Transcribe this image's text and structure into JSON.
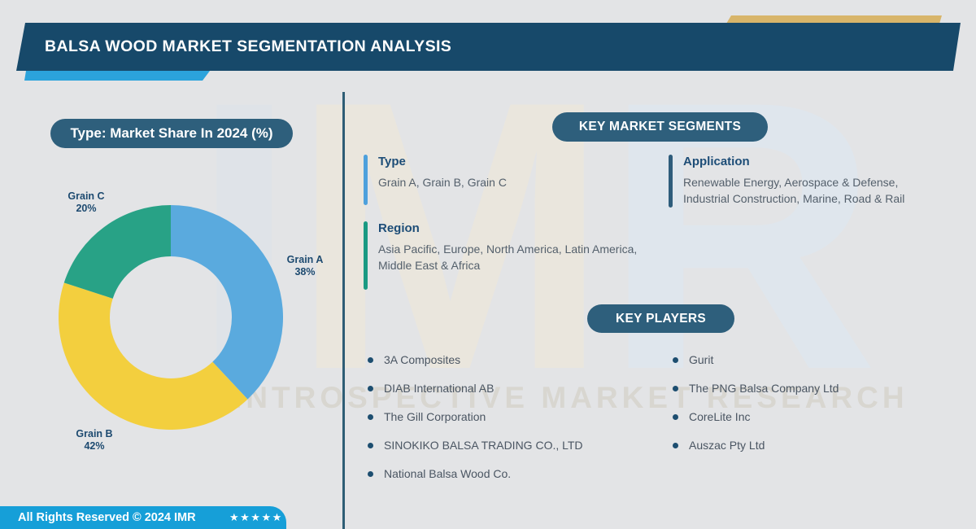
{
  "header": {
    "title": "BALSA WOOD MARKET SEGMENTATION ANALYSIS"
  },
  "chart_data": {
    "type": "pie",
    "subtype": "donut",
    "title": "Type: Market Share In 2024 (%)",
    "categories": [
      "Grain A",
      "Grain B",
      "Grain C"
    ],
    "values": [
      38,
      42,
      20
    ],
    "unit": "%",
    "colors": [
      "#5aaade",
      "#f3cf3e",
      "#28a286"
    ],
    "slice_labels": [
      [
        "Grain A",
        "38%"
      ],
      [
        "Grain B",
        "42%"
      ],
      [
        "Grain C",
        "20%"
      ]
    ],
    "start_angle_deg": -90,
    "direction": "clockwise",
    "legend": "none",
    "label_color": "#1d4a70"
  },
  "segments": {
    "button_label": "KEY MARKET SEGMENTS",
    "groups": [
      {
        "heading": "Type",
        "text": "Grain A, Grain B, Grain C",
        "accent_color": "#4da0dc"
      },
      {
        "heading": "Region",
        "text": "Asia Pacific, Europe, North America, Latin America, Middle East & Africa",
        "accent_color": "#1a9a82"
      },
      {
        "heading": "Application",
        "text": "Renewable Energy, Aerospace & Defense, Industrial Construction, Marine, Road & Rail",
        "accent_color": "#2e5d7c"
      }
    ]
  },
  "players": {
    "button_label": "KEY PLAYERS",
    "left": [
      "3A Composites",
      "DIAB International AB",
      "The Gill Corporation",
      "SINOKIKO BALSA TRADING CO., LTD",
      "National Balsa Wood Co."
    ],
    "right": [
      "Gurit",
      "The PNG Balsa Company Ltd",
      "CoreLite Inc",
      "Auszac Pty Ltd"
    ]
  },
  "footer": {
    "text": "All Rights Reserved © 2024 IMR",
    "stars": "★★★★★"
  },
  "watermark": {
    "letters": [
      "I",
      "M",
      "R"
    ],
    "tagline": "INTROSPECTIVE MARKET RESEARCH"
  },
  "theme_colors": {
    "background": "#e3e4e6",
    "header_bg": "#17496a",
    "pill_bg": "#2e5f7c",
    "header_accent_blue": "#2ba3dc",
    "gold_bar": "#d8b56a",
    "divider": "#2e5d75",
    "footer_bg": "#169fd8",
    "heading_text": "#1d4d77",
    "body_text": "#54606c"
  }
}
